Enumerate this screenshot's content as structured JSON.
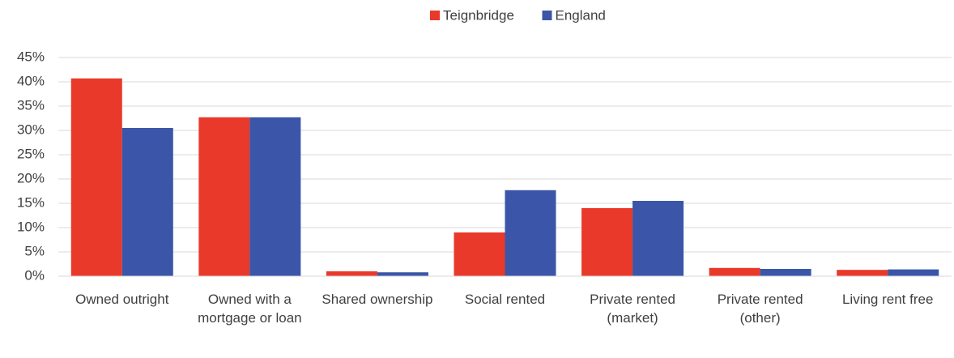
{
  "chart_data": {
    "type": "bar",
    "categories": [
      "Owned outright",
      "Owned with a mortgage or loan",
      "Shared ownership",
      "Social rented",
      "Private rented (market)",
      "Private rented (other)",
      "Living rent free"
    ],
    "series": [
      {
        "name": "Teignbridge",
        "color": "#e8392a",
        "values": [
          40.7,
          32.7,
          1.0,
          9.0,
          14.0,
          1.7,
          1.3
        ]
      },
      {
        "name": "England",
        "color": "#3b56a8",
        "values": [
          30.5,
          32.7,
          0.8,
          17.7,
          15.5,
          1.5,
          1.4
        ]
      }
    ],
    "ylim": [
      0,
      45
    ],
    "yticks": [
      {
        "value": 0,
        "label": "0%"
      },
      {
        "value": 5,
        "label": "5%"
      },
      {
        "value": 10,
        "label": "10%"
      },
      {
        "value": 15,
        "label": "15%"
      },
      {
        "value": 20,
        "label": "20%"
      },
      {
        "value": 25,
        "label": "25%"
      },
      {
        "value": 30,
        "label": "30%"
      },
      {
        "value": 35,
        "label": "35%"
      },
      {
        "value": 40,
        "label": "40%"
      },
      {
        "value": 45,
        "label": "45%"
      }
    ],
    "grid": true,
    "legend": "top"
  }
}
